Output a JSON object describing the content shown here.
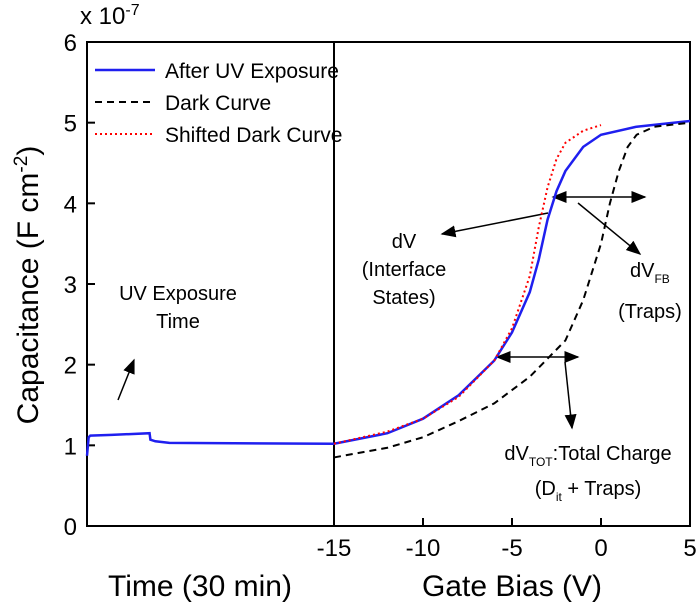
{
  "chart_data": [
    {
      "type": "line",
      "xlabel": "Time (30 min)",
      "ylabel": "Capacitance (F cm",
      "ylabel_sup": "-2",
      "ylabel_end": ")",
      "multiplier": "x 10",
      "multiplier_sup": "-7",
      "xlim": [
        0,
        30
      ],
      "ylim": [
        0,
        6
      ],
      "yticks": [
        0,
        1,
        2,
        3,
        4,
        5,
        6
      ],
      "series": [
        {
          "color": "#1f1fef",
          "linestyle": "solid",
          "x": [
            0,
            0.2,
            0.4,
            3,
            7.6,
            7.7,
            8.3,
            10,
            30
          ],
          "values": [
            0.87,
            1.1,
            1.12,
            1.13,
            1.15,
            1.07,
            1.05,
            1.03,
            1.02
          ]
        }
      ],
      "annotations": [
        "UV Exposure",
        "Time"
      ]
    },
    {
      "type": "line",
      "xlabel": "Gate Bias (V)",
      "xlim": [
        -15,
        5
      ],
      "xticks": [
        -15,
        -10,
        -5,
        0,
        5
      ],
      "ylim": [
        0,
        6
      ],
      "legend": "upper left",
      "series": [
        {
          "name": "After UV Exposure",
          "color": "#1f1fef",
          "linestyle": "solid",
          "x": [
            -15,
            -12,
            -10,
            -8,
            -6,
            -5,
            -4,
            -3.5,
            -3,
            -2.5,
            -2,
            -1,
            0,
            2,
            5
          ],
          "values": [
            1.02,
            1.15,
            1.33,
            1.62,
            2.05,
            2.4,
            2.9,
            3.3,
            3.8,
            4.15,
            4.4,
            4.7,
            4.85,
            4.95,
            5.02
          ]
        },
        {
          "name": "Dark Curve",
          "color": "#000000",
          "linestyle": "dashed",
          "x": [
            -15,
            -12,
            -10,
            -8,
            -6,
            -4,
            -2,
            -1,
            0,
            0.5,
            1,
            1.5,
            2,
            3,
            5
          ],
          "values": [
            0.85,
            0.97,
            1.1,
            1.3,
            1.52,
            1.85,
            2.3,
            2.8,
            3.5,
            4.0,
            4.4,
            4.7,
            4.85,
            4.95,
            5.0
          ]
        },
        {
          "name": "Shifted Dark Curve",
          "color": "#ff0000",
          "linestyle": "dotted",
          "x": [
            -15,
            -12,
            -10,
            -8,
            -6,
            -5,
            -4,
            -3.5,
            -3,
            -2.5,
            -2,
            -1,
            0
          ],
          "values": [
            1.02,
            1.17,
            1.33,
            1.6,
            2.05,
            2.45,
            3.1,
            3.7,
            4.2,
            4.55,
            4.75,
            4.9,
            4.97
          ]
        }
      ],
      "annotations": [
        "dV",
        "(Interface",
        "States)",
        "dV",
        "FB",
        "(Traps)",
        "dV",
        "TOT",
        ":Total Charge",
        "(D",
        "it",
        " + Traps)"
      ]
    }
  ]
}
